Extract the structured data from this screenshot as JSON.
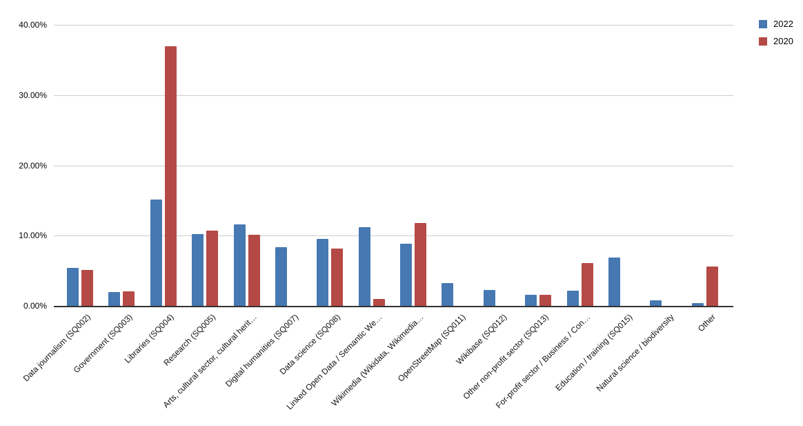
{
  "chart_data": {
    "type": "bar",
    "title": "",
    "xlabel": "",
    "ylabel": "",
    "ylim": [
      0,
      40
    ],
    "grid": true,
    "legend_position": "top-right",
    "yticks": [
      {
        "value": 0,
        "label": "0.00%"
      },
      {
        "value": 10,
        "label": "10.00%"
      },
      {
        "value": 20,
        "label": "20.00%"
      },
      {
        "value": 30,
        "label": "30.00%"
      },
      {
        "value": 40,
        "label": "40.00%"
      }
    ],
    "categories": [
      "Data journalism (SQ002)",
      "Government (SQ003)",
      "Libraries (SQ004)",
      "Research (SQ005)",
      "Arts, cultural sector, cultural herit…",
      "Digital humanities (SQ007)",
      "Data science (SQ008)",
      "Linked Open Data / Semantic We…",
      "Wikimedia (Wikidata, Wikimedia…",
      "OpenStreetMap (SQ011)",
      "Wikibase (SQ012)",
      "Other non-profit sector (SQ013)",
      "For-profit sector / Business / Con…",
      "Education / training (SQ015)",
      "Natural science / biodiversity",
      "Other"
    ],
    "series": [
      {
        "name": "2022",
        "color": "#4678b2",
        "values": [
          5.4,
          2.0,
          15.1,
          10.2,
          11.6,
          8.4,
          9.5,
          11.2,
          8.8,
          3.2,
          2.3,
          1.6,
          2.2,
          6.9,
          0.8,
          0.4
        ]
      },
      {
        "name": "2020",
        "color": "#b54946",
        "values": [
          5.1,
          2.1,
          37.0,
          10.7,
          10.1,
          0,
          8.2,
          1.0,
          11.8,
          0,
          0,
          1.6,
          6.1,
          0,
          0,
          5.6
        ]
      }
    ],
    "colors": {
      "gridline": "#cccccc",
      "axis_line": "#333333",
      "label_text": "#111111"
    }
  }
}
